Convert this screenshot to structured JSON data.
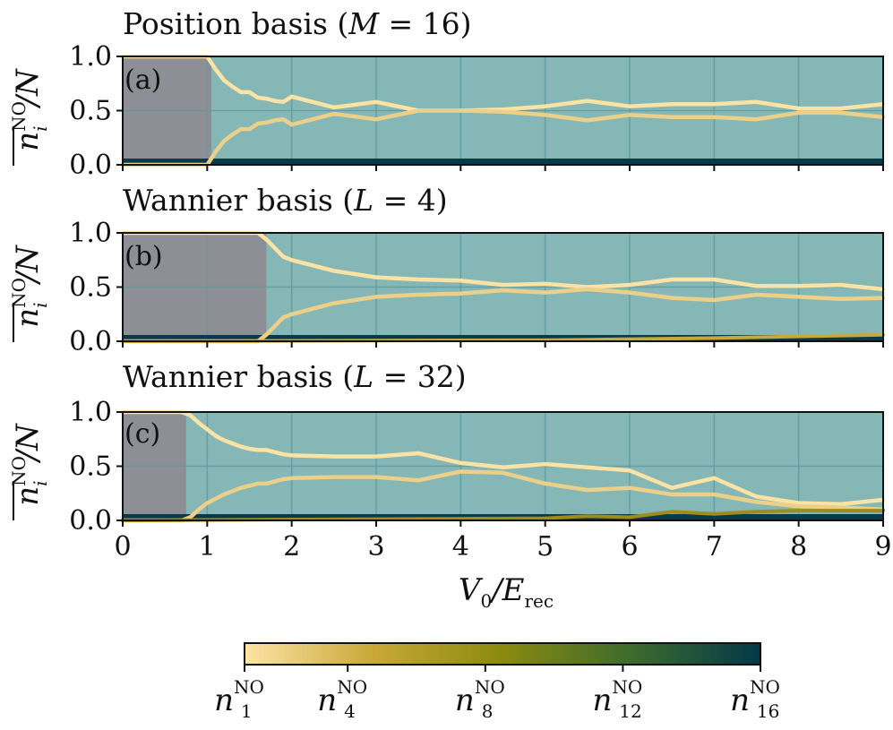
{
  "chart_data": [
    {
      "type": "line",
      "panel": "(a)",
      "title": "Position basis (M = 16)",
      "xlabel": "V_0/E_rec",
      "ylabel": "n_i^NO / N",
      "xlim": [
        0,
        9
      ],
      "ylim": [
        0,
        1
      ],
      "grid": true,
      "fragmented_until": 1.05,
      "series": [
        {
          "color": "#fbe3a5",
          "x": [
            0,
            1,
            1.1,
            1.2,
            1.3,
            1.4,
            1.5,
            1.6,
            1.7,
            1.8,
            1.9,
            2,
            2.5,
            3,
            3.5,
            4,
            4.5,
            5,
            5.5,
            6,
            6.5,
            7,
            7.5,
            8,
            8.5,
            9
          ],
          "y": [
            1.0,
            1.0,
            0.88,
            0.78,
            0.72,
            0.67,
            0.67,
            0.62,
            0.61,
            0.59,
            0.58,
            0.63,
            0.53,
            0.58,
            0.5,
            0.5,
            0.51,
            0.54,
            0.59,
            0.54,
            0.56,
            0.56,
            0.58,
            0.52,
            0.52,
            0.56
          ]
        },
        {
          "color": "#ecd089",
          "x": [
            0,
            1,
            1.1,
            1.2,
            1.3,
            1.4,
            1.5,
            1.6,
            1.7,
            1.8,
            1.9,
            2,
            2.5,
            3,
            3.5,
            4,
            4.5,
            5,
            5.5,
            6,
            6.5,
            7,
            7.5,
            8,
            8.5,
            9
          ],
          "y": [
            0,
            0,
            0.12,
            0.22,
            0.28,
            0.33,
            0.33,
            0.38,
            0.39,
            0.41,
            0.42,
            0.37,
            0.47,
            0.42,
            0.5,
            0.5,
            0.49,
            0.46,
            0.41,
            0.46,
            0.44,
            0.44,
            0.42,
            0.48,
            0.48,
            0.44
          ]
        }
      ]
    },
    {
      "type": "line",
      "panel": "(b)",
      "title": "Wannier basis (L = 4)",
      "xlabel": "V_0/E_rec",
      "ylabel": "n_i^NO / N",
      "xlim": [
        0,
        9
      ],
      "ylim": [
        0,
        1
      ],
      "grid": true,
      "fragmented_until": 1.7,
      "series": [
        {
          "color": "#fbe3a5",
          "x": [
            0,
            1.6,
            1.7,
            1.8,
            1.9,
            2,
            2.5,
            3,
            3.5,
            4,
            4.5,
            5,
            5.5,
            6,
            6.5,
            7,
            7.5,
            8,
            8.5,
            9
          ],
          "y": [
            1.0,
            1.0,
            0.94,
            0.86,
            0.78,
            0.75,
            0.65,
            0.59,
            0.57,
            0.56,
            0.52,
            0.53,
            0.5,
            0.52,
            0.57,
            0.57,
            0.51,
            0.51,
            0.52,
            0.48
          ]
        },
        {
          "color": "#ecd089",
          "x": [
            0,
            1.6,
            1.7,
            1.8,
            1.9,
            2,
            2.5,
            3,
            3.5,
            4,
            4.5,
            5,
            5.5,
            6,
            6.5,
            7,
            7.5,
            8,
            8.5,
            9
          ],
          "y": [
            0,
            0,
            0.06,
            0.14,
            0.22,
            0.25,
            0.35,
            0.41,
            0.43,
            0.44,
            0.47,
            0.45,
            0.48,
            0.45,
            0.4,
            0.38,
            0.43,
            0.41,
            0.39,
            0.4
          ]
        },
        {
          "color": "#c7a83a",
          "x": [
            0,
            5,
            7,
            9
          ],
          "y": [
            0,
            0.01,
            0.03,
            0.06
          ]
        }
      ]
    },
    {
      "type": "line",
      "panel": "(c)",
      "title": "Wannier basis (L = 32)",
      "xlabel": "V_0/E_rec",
      "ylabel": "n_i^NO / N",
      "xlim": [
        0,
        9
      ],
      "ylim": [
        0,
        1
      ],
      "grid": true,
      "fragmented_until": 0.75,
      "series": [
        {
          "color": "#fbe3a5",
          "x": [
            0,
            0.7,
            0.8,
            0.9,
            1,
            1.1,
            1.2,
            1.3,
            1.4,
            1.5,
            1.6,
            1.7,
            1.8,
            1.9,
            2,
            2.5,
            3,
            3.5,
            4,
            4.5,
            5,
            5.5,
            6,
            6.5,
            7,
            7.5,
            8,
            8.5,
            9
          ],
          "y": [
            1.0,
            1.0,
            0.97,
            0.9,
            0.84,
            0.78,
            0.74,
            0.71,
            0.68,
            0.66,
            0.65,
            0.65,
            0.63,
            0.61,
            0.6,
            0.59,
            0.59,
            0.62,
            0.53,
            0.49,
            0.52,
            0.49,
            0.46,
            0.3,
            0.39,
            0.22,
            0.16,
            0.15,
            0.19
          ]
        },
        {
          "color": "#ecd089",
          "x": [
            0,
            0.7,
            0.8,
            0.9,
            1,
            1.1,
            1.2,
            1.3,
            1.4,
            1.5,
            1.6,
            1.7,
            1.8,
            1.9,
            2,
            2.5,
            3,
            3.5,
            4,
            4.5,
            5,
            5.5,
            6,
            6.5,
            7,
            7.5,
            8,
            8.5,
            9
          ],
          "y": [
            0,
            0,
            0.03,
            0.1,
            0.16,
            0.2,
            0.24,
            0.27,
            0.3,
            0.32,
            0.34,
            0.34,
            0.36,
            0.38,
            0.39,
            0.4,
            0.4,
            0.37,
            0.45,
            0.44,
            0.34,
            0.28,
            0.3,
            0.24,
            0.24,
            0.17,
            0.13,
            0.12,
            0.1
          ]
        },
        {
          "color": "#a08b1c",
          "x": [
            0,
            5,
            5.5,
            6,
            6.5,
            7,
            7.5,
            8,
            8.5,
            9
          ],
          "y": [
            0,
            0.02,
            0.04,
            0.03,
            0.08,
            0.06,
            0.08,
            0.09,
            0.09,
            0.09
          ]
        }
      ]
    }
  ],
  "panel_titles": {
    "a": "Position basis (",
    "a_sym": "M",
    "a_val": " = 16)",
    "b": "Wannier basis (",
    "b_sym": "L",
    "b_val": " = 4)",
    "c": "Wannier basis (",
    "c_sym": "L",
    "c_val": " = 32)"
  },
  "panel_tags": {
    "a": "(a)",
    "b": "(b)",
    "c": "(c)"
  },
  "y_ticks": [
    "1.0",
    "0.5",
    "0.0"
  ],
  "x_ticks": [
    "0",
    "1",
    "2",
    "3",
    "4",
    "5",
    "6",
    "7",
    "8",
    "9"
  ],
  "ylabel": {
    "n": "n",
    "sub": "i",
    "sup": "NO",
    "div": "/N"
  },
  "xlabel": {
    "v": "V",
    "v_sub": "0",
    "div": "/E",
    "e_sub": "rec"
  },
  "colorbar": {
    "stops": [
      "#fde4a6",
      "#c9a838",
      "#8a8a10",
      "#3d6b2e",
      "#03384a"
    ],
    "labels": [
      {
        "n": "n",
        "sub": "1",
        "sup": "NO",
        "frac": 0.0
      },
      {
        "n": "n",
        "sub": "4",
        "sup": "NO",
        "frac": 0.2
      },
      {
        "n": "n",
        "sub": "8",
        "sup": "NO",
        "frac": 0.4667
      },
      {
        "n": "n",
        "sub": "12",
        "sup": "NO",
        "frac": 0.7333
      },
      {
        "n": "n",
        "sub": "16",
        "sup": "NO",
        "frac": 1.0
      }
    ]
  },
  "colors": {
    "background": "#86b7b7",
    "fragmented": "#8e8e96",
    "baseline": "#073b4c",
    "grid": "#5f9a9d"
  }
}
